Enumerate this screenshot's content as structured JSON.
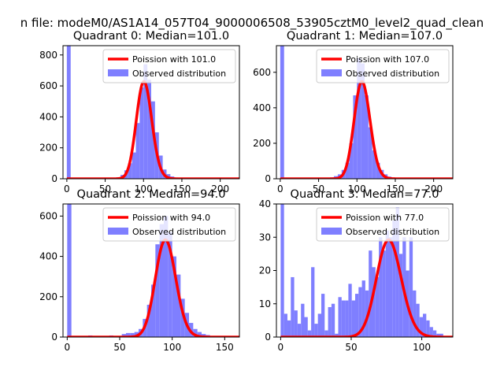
{
  "figure": {
    "suptitle": "n file: modeM0/AS1A14_057T04_9000006508_53905cztM0_level2_quad_clean"
  },
  "colors": {
    "hist": "#7f7fff",
    "line": "#ff0000",
    "axis": "#000000",
    "background": "#ffffff"
  },
  "chart_data": [
    {
      "type": "bar",
      "title": "Quadrant 0: Median=101.0",
      "median": 101.0,
      "xlim": [
        -5,
        225
      ],
      "ylim": [
        0,
        860
      ],
      "xticks": [
        0,
        50,
        100,
        150,
        200
      ],
      "yticks": [
        0,
        200,
        400,
        600,
        800
      ],
      "bin_width": 5,
      "bins": [
        [
          0,
          860
        ],
        [
          60,
          5
        ],
        [
          65,
          10
        ],
        [
          70,
          25
        ],
        [
          75,
          55
        ],
        [
          80,
          100
        ],
        [
          85,
          170
        ],
        [
          90,
          360
        ],
        [
          95,
          590
        ],
        [
          100,
          740
        ],
        [
          105,
          640
        ],
        [
          110,
          500
        ],
        [
          115,
          300
        ],
        [
          120,
          150
        ],
        [
          125,
          60
        ],
        [
          130,
          30
        ],
        [
          135,
          15
        ],
        [
          140,
          8
        ],
        [
          145,
          4
        ]
      ],
      "poisson_mean": 101.0,
      "legend": [
        "Poission with 101.0",
        "Observed distribution"
      ]
    },
    {
      "type": "bar",
      "title": "Quadrant 1: Median=107.0",
      "median": 107.0,
      "xlim": [
        -5,
        225
      ],
      "ylim": [
        0,
        750
      ],
      "xticks": [
        0,
        50,
        100,
        150,
        200
      ],
      "yticks": [
        0,
        200,
        400,
        600
      ],
      "bin_width": 5,
      "bins": [
        [
          0,
          750
        ],
        [
          60,
          5
        ],
        [
          65,
          8
        ],
        [
          70,
          15
        ],
        [
          75,
          25
        ],
        [
          80,
          50
        ],
        [
          85,
          90
        ],
        [
          90,
          200
        ],
        [
          95,
          470
        ],
        [
          100,
          680
        ],
        [
          105,
          650
        ],
        [
          110,
          470
        ],
        [
          115,
          290
        ],
        [
          120,
          160
        ],
        [
          125,
          90
        ],
        [
          130,
          50
        ],
        [
          135,
          25
        ],
        [
          140,
          12
        ],
        [
          145,
          6
        ],
        [
          150,
          3
        ]
      ],
      "poisson_mean": 107.0,
      "legend": [
        "Poission with 107.0",
        "Observed distribution"
      ]
    },
    {
      "type": "bar",
      "title": "Quadrant 2: Median=94.0",
      "median": 94.0,
      "xlim": [
        -4,
        164
      ],
      "ylim": [
        0,
        660
      ],
      "xticks": [
        0,
        50,
        100,
        150
      ],
      "yticks": [
        0,
        200,
        400,
        600
      ],
      "bin_width": 4,
      "bins": [
        [
          0,
          660
        ],
        [
          20,
          8
        ],
        [
          40,
          8
        ],
        [
          52,
          15
        ],
        [
          56,
          20
        ],
        [
          60,
          20
        ],
        [
          64,
          25
        ],
        [
          68,
          40
        ],
        [
          72,
          90
        ],
        [
          76,
          160
        ],
        [
          80,
          260
        ],
        [
          84,
          460
        ],
        [
          88,
          560
        ],
        [
          92,
          600
        ],
        [
          96,
          520
        ],
        [
          100,
          400
        ],
        [
          104,
          310
        ],
        [
          108,
          190
        ],
        [
          112,
          120
        ],
        [
          116,
          70
        ],
        [
          120,
          40
        ],
        [
          124,
          25
        ],
        [
          128,
          15
        ],
        [
          132,
          10
        ],
        [
          136,
          5
        ],
        [
          140,
          4
        ]
      ],
      "poisson_mean": 94.0,
      "legend": [
        "Poission with 94.0",
        "Observed distribution"
      ]
    },
    {
      "type": "bar",
      "title": "Quadrant 3: Median=77.0",
      "median": 77.0,
      "xlim": [
        -3,
        122
      ],
      "ylim": [
        0,
        40
      ],
      "xticks": [
        0,
        50,
        100
      ],
      "yticks": [
        0,
        10,
        20,
        30,
        40
      ],
      "bin_width": 2.4,
      "bins": [
        [
          0,
          40
        ],
        [
          2.4,
          7
        ],
        [
          4.8,
          5
        ],
        [
          7.2,
          18
        ],
        [
          9.6,
          8
        ],
        [
          12,
          4
        ],
        [
          14.4,
          10
        ],
        [
          16.8,
          6
        ],
        [
          19.2,
          2
        ],
        [
          21.6,
          21
        ],
        [
          24,
          4
        ],
        [
          26.4,
          7
        ],
        [
          28.8,
          13
        ],
        [
          31.2,
          2
        ],
        [
          33.6,
          9
        ],
        [
          36,
          10
        ],
        [
          38.4,
          1
        ],
        [
          40.8,
          12
        ],
        [
          43.2,
          11
        ],
        [
          45.6,
          11
        ],
        [
          48,
          16
        ],
        [
          50.4,
          11
        ],
        [
          52.8,
          13
        ],
        [
          55.2,
          15
        ],
        [
          57.6,
          17
        ],
        [
          60,
          14
        ],
        [
          62.4,
          26
        ],
        [
          64.8,
          21
        ],
        [
          67.2,
          18
        ],
        [
          69.6,
          30
        ],
        [
          72,
          26
        ],
        [
          74.4,
          32
        ],
        [
          76.8,
          30
        ],
        [
          79.2,
          35
        ],
        [
          81.6,
          39
        ],
        [
          84,
          25
        ],
        [
          86.4,
          30
        ],
        [
          88.8,
          20
        ],
        [
          91.2,
          30
        ],
        [
          93.6,
          14
        ],
        [
          96,
          10
        ],
        [
          98.4,
          6
        ],
        [
          100.8,
          7
        ],
        [
          103.2,
          5
        ],
        [
          105.6,
          3
        ],
        [
          108,
          2
        ],
        [
          110.4,
          1
        ],
        [
          112.8,
          1
        ]
      ],
      "poisson_mean": 77.0,
      "legend": [
        "Poission with 77.0",
        "Observed distribution"
      ]
    }
  ]
}
